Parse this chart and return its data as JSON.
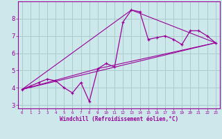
{
  "bg_color": "#cce8ea",
  "line_color": "#990099",
  "grid_color": "#aacccc",
  "xlabel": "Windchill (Refroidissement éolien,°C)",
  "xlim": [
    -0.5,
    23.5
  ],
  "ylim": [
    2.8,
    9.0
  ],
  "xticks": [
    0,
    1,
    2,
    3,
    4,
    5,
    6,
    7,
    8,
    9,
    10,
    11,
    12,
    13,
    14,
    15,
    16,
    17,
    18,
    19,
    20,
    21,
    22,
    23
  ],
  "yticks": [
    3,
    4,
    5,
    6,
    7,
    8
  ],
  "line1_x": [
    0,
    1,
    2,
    3,
    4,
    5,
    6,
    7,
    8,
    9,
    10,
    11,
    12,
    13,
    14,
    15,
    16,
    17,
    18,
    19,
    20,
    21,
    22,
    23
  ],
  "line1_y": [
    3.9,
    4.1,
    4.3,
    4.5,
    4.4,
    4.0,
    3.7,
    4.3,
    3.2,
    5.1,
    5.4,
    5.2,
    7.8,
    8.5,
    8.4,
    6.8,
    6.9,
    7.0,
    6.8,
    6.5,
    7.3,
    7.3,
    7.0,
    6.6
  ],
  "line2_x": [
    0,
    23
  ],
  "line2_y": [
    3.9,
    6.6
  ],
  "line3_x": [
    0,
    9,
    23
  ],
  "line3_y": [
    3.9,
    5.1,
    6.6
  ],
  "line4_x": [
    0,
    13,
    23
  ],
  "line4_y": [
    3.9,
    8.5,
    6.6
  ]
}
